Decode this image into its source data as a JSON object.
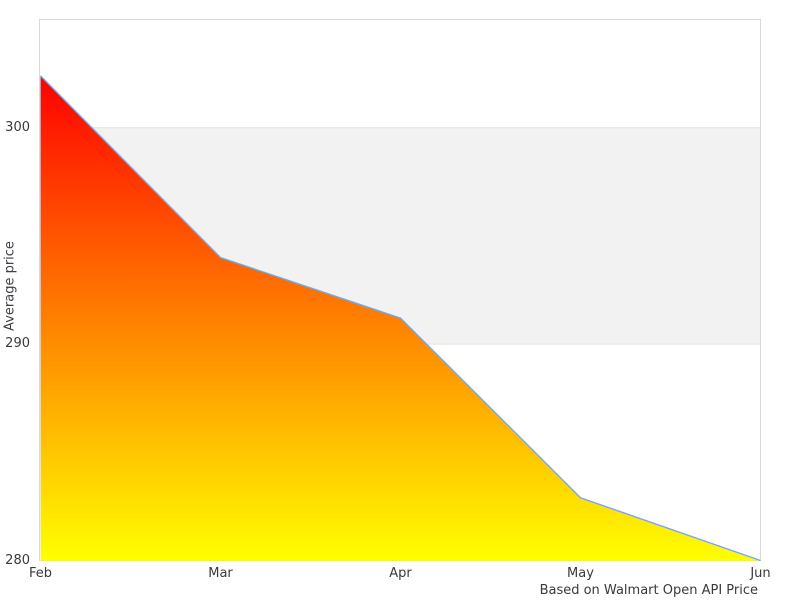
{
  "figure": {
    "y_axis_title": "Average price",
    "caption": "Based on Walmart Open API Price"
  },
  "chart_data": {
    "type": "area",
    "title": "",
    "xlabel": "",
    "ylabel": "Average price",
    "categories": [
      "Feb",
      "Mar",
      "Apr",
      "May",
      "Jun"
    ],
    "values": [
      302.4,
      294.0,
      291.2,
      282.9,
      280.0
    ],
    "ylim": [
      280,
      305
    ],
    "yticks": [
      280,
      290,
      300
    ],
    "band": {
      "from": 290,
      "to": 300
    },
    "grid": "horizontal-at-yticks",
    "legend": "none",
    "annotation": "Based on Walmart Open API Price",
    "colors": {
      "area_gradient_top": "#ff0000",
      "area_gradient_bottom": "#ffff00",
      "line": "#7fa8d9",
      "band": "#f2f2f2",
      "gridline": "#e2e2e2",
      "plot_border": "#d9d9d9",
      "tick_text": "#3a3a3a",
      "background": "#ffffff"
    }
  }
}
